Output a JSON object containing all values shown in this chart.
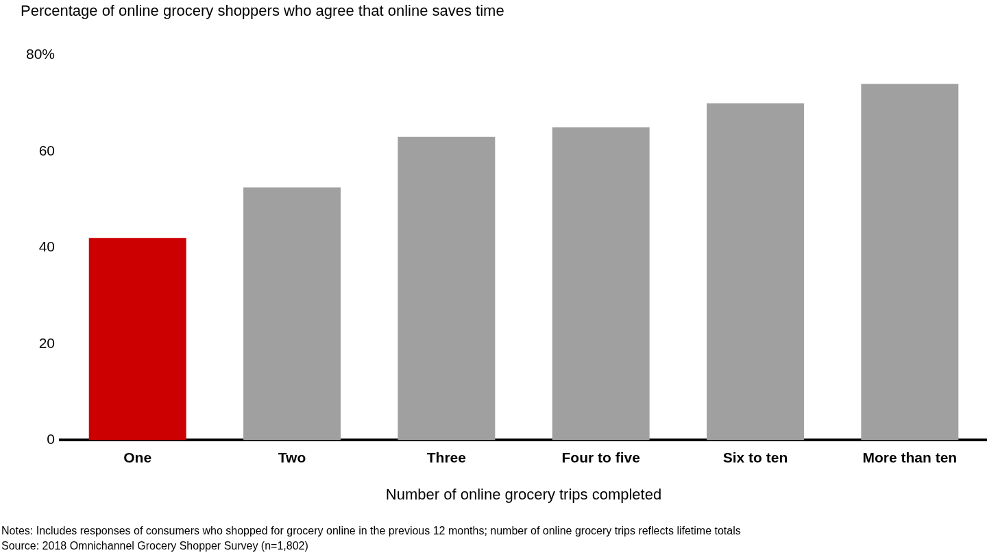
{
  "chart_data": {
    "type": "bar",
    "title": "Percentage of online grocery shoppers who agree that online saves time",
    "xlabel": "Number of online grocery trips completed",
    "categories": [
      "One",
      "Two",
      "Three",
      "Four to five",
      "Six to ten",
      "More than ten"
    ],
    "values": [
      42,
      52.5,
      63,
      65,
      70,
      74
    ],
    "colors": [
      "#cc0000",
      "#a0a0a0",
      "#a0a0a0",
      "#a0a0a0",
      "#a0a0a0",
      "#a0a0a0"
    ],
    "ylim": [
      0,
      80
    ],
    "yticks": [
      0,
      20,
      40,
      60,
      {
        "value": 80,
        "label": "80%"
      }
    ],
    "grid": false,
    "legend": false,
    "annotations": [
      "Notes: Includes responses of consumers who shopped for grocery online in the previous 12 months; number of online grocery trips reflects lifetime totals",
      "Source: 2018 Omnichannel Grocery Shopper Survey (n=1,802)"
    ]
  }
}
